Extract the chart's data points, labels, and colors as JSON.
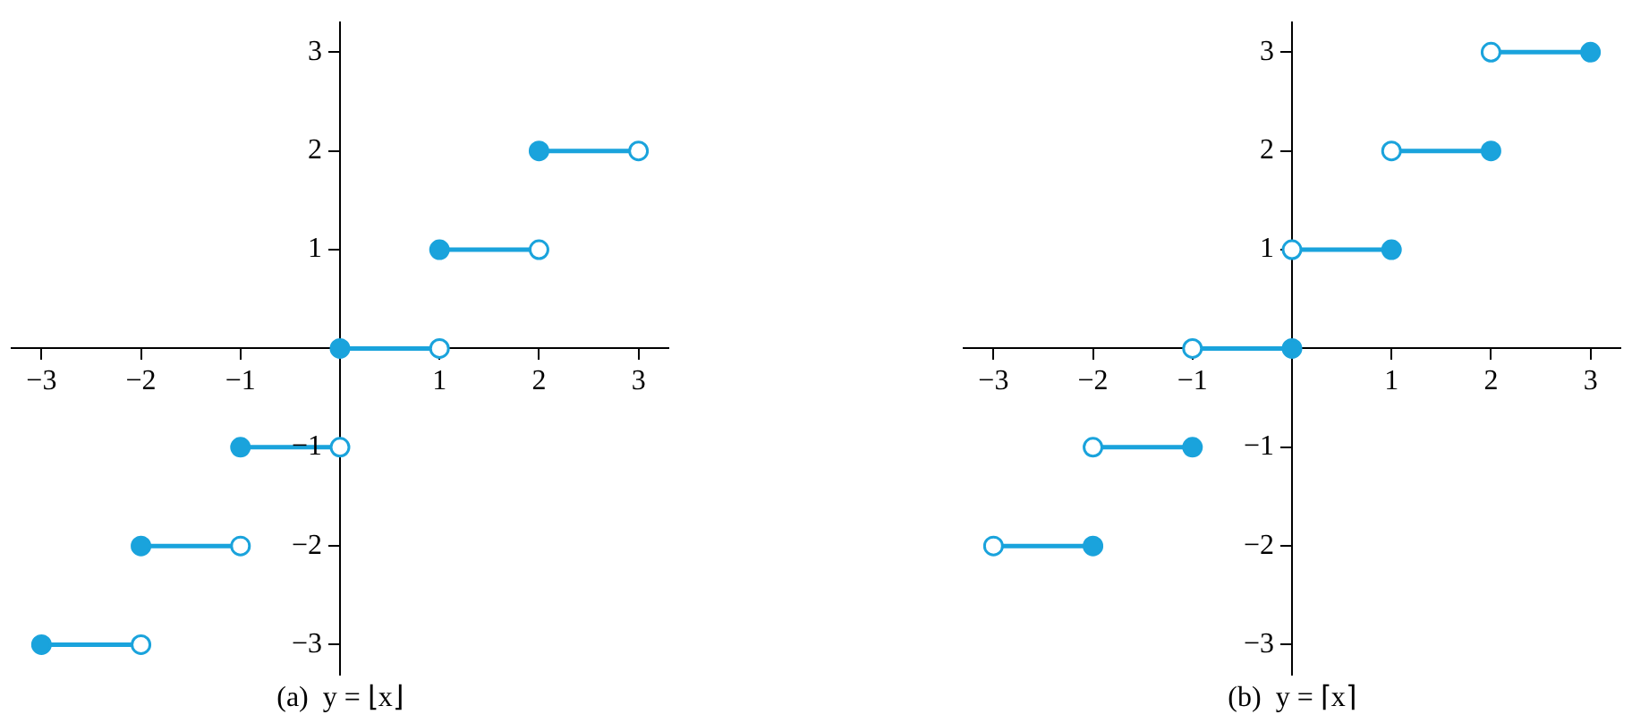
{
  "chart_data": [
    {
      "type": "line",
      "title": "(a)  y = ⌊x⌋",
      "xlim": [
        -3.3,
        3.3
      ],
      "ylim": [
        -3.3,
        3.3
      ],
      "xticks": [
        {
          "value": -3,
          "label": "−3"
        },
        {
          "value": -2,
          "label": "−2"
        },
        {
          "value": -1,
          "label": "−1"
        },
        {
          "value": 0,
          "label": null
        },
        1,
        2,
        3
      ],
      "yticks": [
        {
          "value": -3,
          "label": "−3"
        },
        {
          "value": -2,
          "label": "−2"
        },
        {
          "value": -1,
          "label": "−1"
        },
        {
          "value": 0,
          "label": null
        },
        1,
        2,
        3
      ],
      "grid": false,
      "legend": false,
      "series": [
        {
          "color": "#1aa3dc",
          "x": [
            -3,
            -2
          ],
          "values": [
            -3,
            -3
          ]
        },
        {
          "color": "#1aa3dc",
          "x": [
            -2,
            -1
          ],
          "values": [
            -2,
            -2
          ]
        },
        {
          "color": "#1aa3dc",
          "x": [
            -1,
            0
          ],
          "values": [
            -1,
            -1
          ]
        },
        {
          "color": "#1aa3dc",
          "x": [
            0,
            1
          ],
          "values": [
            0,
            0
          ]
        },
        {
          "color": "#1aa3dc",
          "x": [
            1,
            2
          ],
          "values": [
            1,
            1
          ]
        },
        {
          "color": "#1aa3dc",
          "x": [
            2,
            3
          ],
          "values": [
            2,
            2
          ]
        },
        {
          "type": "scatter",
          "color": "#ffffff",
          "x": [
            -2,
            -1,
            0,
            1,
            2,
            3
          ],
          "values": [
            -3,
            -2,
            -1,
            0,
            1,
            2
          ]
        },
        {
          "type": "scatter",
          "color": "#1aa3dc",
          "x": [
            -3,
            -2,
            -1,
            0,
            1,
            2
          ],
          "values": [
            -3,
            -2,
            -1,
            0,
            1,
            2
          ]
        }
      ]
    },
    {
      "type": "line",
      "title": "(b)  y = ⌈x⌉",
      "xlim": [
        -3.3,
        3.3
      ],
      "ylim": [
        -3.3,
        3.3
      ],
      "xticks": [
        {
          "value": -3,
          "label": "−3"
        },
        {
          "value": -2,
          "label": "−2"
        },
        {
          "value": -1,
          "label": "−1"
        },
        {
          "value": 0,
          "label": null
        },
        1,
        2,
        3
      ],
      "yticks": [
        {
          "value": -3,
          "label": "−3"
        },
        {
          "value": -2,
          "label": "−2"
        },
        {
          "value": -1,
          "label": "−1"
        },
        {
          "value": 0,
          "label": null
        },
        1,
        2,
        3
      ],
      "grid": false,
      "legend": false,
      "series": [
        {
          "color": "#1aa3dc",
          "x": [
            -3,
            -2
          ],
          "values": [
            -2,
            -2
          ]
        },
        {
          "color": "#1aa3dc",
          "x": [
            -2,
            -1
          ],
          "values": [
            -1,
            -1
          ]
        },
        {
          "color": "#1aa3dc",
          "x": [
            -1,
            0
          ],
          "values": [
            0,
            0
          ]
        },
        {
          "color": "#1aa3dc",
          "x": [
            0,
            1
          ],
          "values": [
            1,
            1
          ]
        },
        {
          "color": "#1aa3dc",
          "x": [
            1,
            2
          ],
          "values": [
            2,
            2
          ]
        },
        {
          "color": "#1aa3dc",
          "x": [
            2,
            3
          ],
          "values": [
            3,
            3
          ]
        },
        {
          "type": "scatter",
          "color": "#ffffff",
          "x": [
            -3,
            -2,
            -1,
            0,
            1,
            2
          ],
          "values": [
            -2,
            -1,
            0,
            1,
            2,
            3
          ]
        },
        {
          "type": "scatter",
          "color": "#1aa3dc",
          "x": [
            -2,
            -1,
            0,
            1,
            2,
            3
          ],
          "values": [
            -2,
            -1,
            0,
            1,
            2,
            3
          ]
        }
      ]
    }
  ]
}
